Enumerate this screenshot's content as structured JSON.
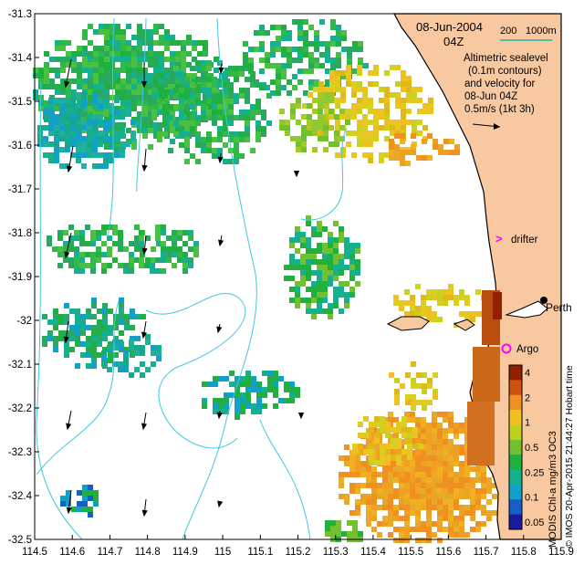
{
  "title": {
    "date": "08-Jun-2004",
    "time": "04Z"
  },
  "scale_bar": {
    "label_left": "200",
    "label_right": "1000m",
    "color": "#20b2aa"
  },
  "legend_note": [
    "Altimetric sealevel",
    "(0.1m contours)",
    "and velocity for",
    "08-Jun 04Z",
    "0.5m/s (1kt 3h)"
  ],
  "axes": {
    "x_ticks": [
      "114.5",
      "114.6",
      "114.7",
      "114.8",
      "114.9",
      "115",
      "115.1",
      "115.2",
      "115.3",
      "115.4",
      "115.5",
      "115.6",
      "115.7",
      "115.8",
      "115.9"
    ],
    "y_ticks": [
      "-31.3",
      "-31.4",
      "-31.5",
      "-31.6",
      "-31.7",
      "-31.8",
      "-31.9",
      "-32",
      "-32.1",
      "-32.2",
      "-32.3",
      "-32.4",
      "-32.5"
    ]
  },
  "places": {
    "drifter": "drifter",
    "perth": "Perth",
    "argo": "Argo"
  },
  "colorbar": {
    "title": "MODIS Chl-a mg/m3 OC3",
    "ticks": [
      "4",
      "2",
      "1",
      "0.5",
      "0.25",
      "0.1",
      "0.05"
    ],
    "colors": [
      "#1a1aa0",
      "#1560c8",
      "#10a0c8",
      "#14b090",
      "#20b040",
      "#70c030",
      "#c0d020",
      "#f0c020",
      "#f09020",
      "#d05010",
      "#902000"
    ]
  },
  "credit": "© IMOS 20-Apr-2015 21:44:27 Hobart time",
  "colors": {
    "land": "#f8c8a0",
    "coast": "#000000",
    "contour": "#40c8e0",
    "drifter": "#ff00ff",
    "argo": "#ff00ff"
  }
}
